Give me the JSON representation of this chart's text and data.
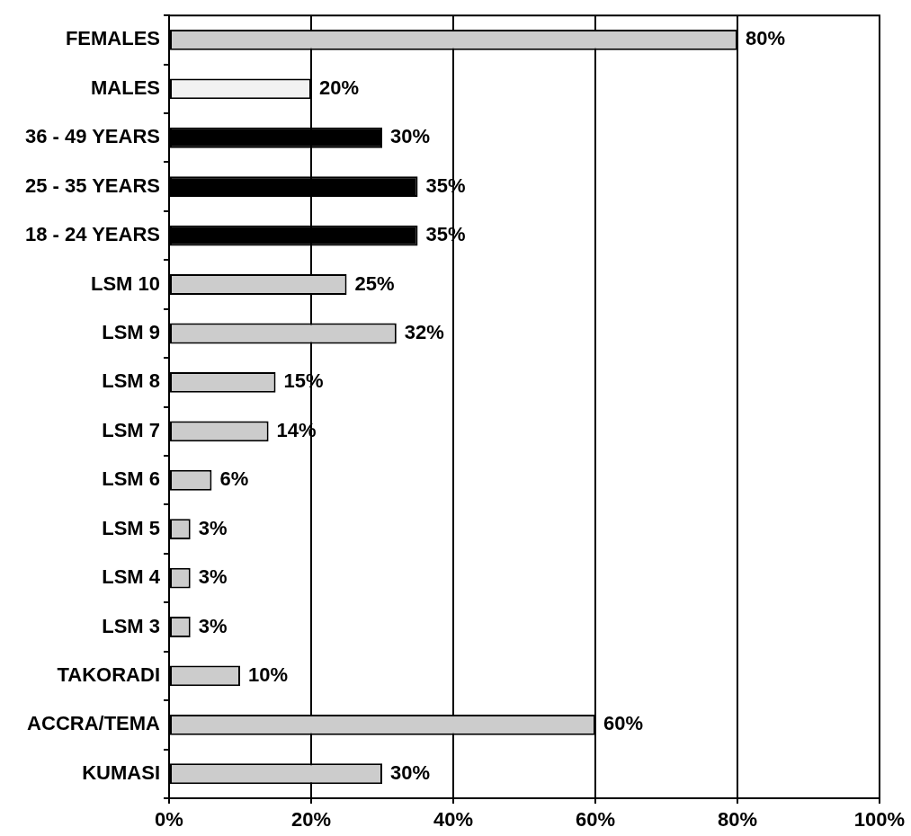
{
  "chart_data": {
    "type": "bar",
    "orientation": "horizontal",
    "categories": [
      "FEMALES",
      "MALES",
      "36 - 49 YEARS",
      "25 - 35 YEARS",
      "18 - 24 YEARS",
      "LSM 10",
      "LSM 9",
      "LSM 8",
      "LSM 7",
      "LSM 6",
      "LSM 5",
      "LSM 4",
      "LSM 3",
      "TAKORADI",
      "ACCRA/TEMA",
      "KUMASI"
    ],
    "values": [
      80,
      20,
      30,
      35,
      35,
      25,
      32,
      15,
      14,
      6,
      3,
      3,
      3,
      10,
      60,
      30
    ],
    "colors": [
      "#cccccc",
      "#f2f2f2",
      "#000000",
      "#000000",
      "#000000",
      "#cccccc",
      "#cccccc",
      "#cccccc",
      "#cccccc",
      "#cccccc",
      "#cccccc",
      "#cccccc",
      "#cccccc",
      "#cccccc",
      "#cccccc",
      "#cccccc"
    ],
    "value_labels": [
      "80%",
      "20%",
      "30%",
      "35%",
      "35%",
      "25%",
      "32%",
      "15%",
      "14%",
      "6%",
      "3%",
      "3%",
      "3%",
      "10%",
      "60%",
      "30%"
    ],
    "xlim": [
      0,
      100
    ],
    "xticks": [
      {
        "value": 0,
        "label": "0%"
      },
      {
        "value": 20,
        "label": "20%"
      },
      {
        "value": 40,
        "label": "40%"
      },
      {
        "value": 60,
        "label": "60%"
      },
      {
        "value": 80,
        "label": "80%"
      },
      {
        "value": 100,
        "label": "100%"
      }
    ],
    "grid": "x"
  }
}
